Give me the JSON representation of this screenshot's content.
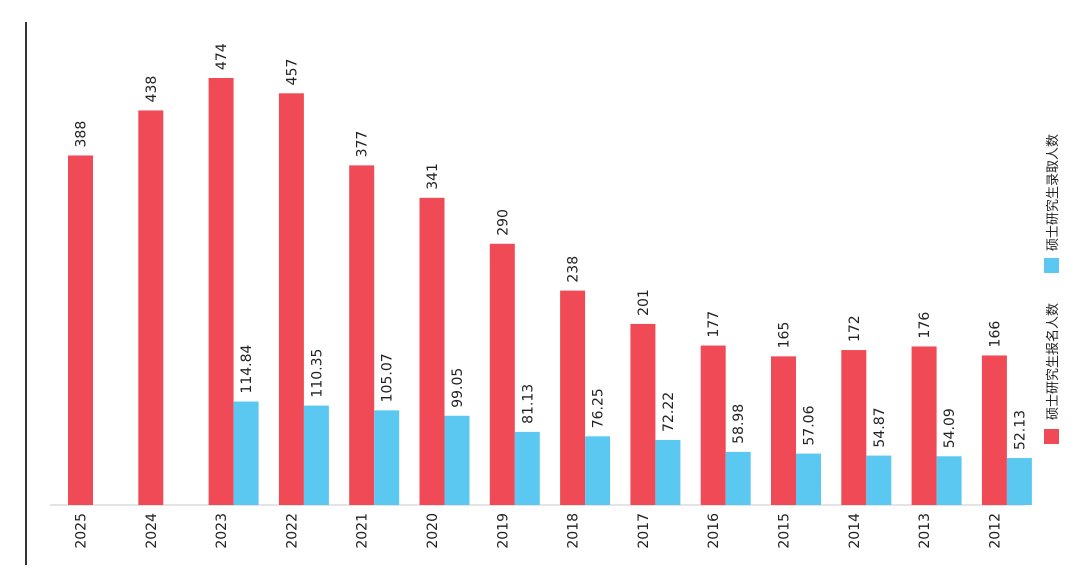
{
  "chart_data": {
    "type": "bar",
    "orientation": "rotated-90-clockwise",
    "categories": [
      "2025",
      "2024",
      "2023",
      "2022",
      "2021",
      "2020",
      "2019",
      "2018",
      "2017",
      "2016",
      "2015",
      "2014",
      "2013",
      "2012"
    ],
    "series": [
      {
        "name": "硕士研究生报名人数",
        "color": "#ef4a55",
        "values": [
          388,
          438,
          474,
          457,
          377,
          341,
          290,
          238,
          201,
          177,
          165,
          172,
          176,
          166
        ],
        "labels": [
          "388",
          "438",
          "474",
          "457",
          "377",
          "341",
          "290",
          "238",
          "201",
          "177",
          "165",
          "172",
          "176",
          "166"
        ]
      },
      {
        "name": "硕士研究生录取人数",
        "color": "#5bc8f2",
        "values": [
          null,
          null,
          114.84,
          110.35,
          105.07,
          99.05,
          81.13,
          76.25,
          72.22,
          58.98,
          57.06,
          54.87,
          54.09,
          52.13
        ],
        "labels": [
          "",
          "",
          "114.84",
          "110.35",
          "105.07",
          "99.05",
          "81.13",
          "76.25",
          "72.22",
          "58.98",
          "57.06",
          "54.87",
          "54.09",
          "52.13"
        ]
      }
    ],
    "legend_position": "right",
    "grid": false,
    "ylim": [
      0,
      480
    ]
  }
}
